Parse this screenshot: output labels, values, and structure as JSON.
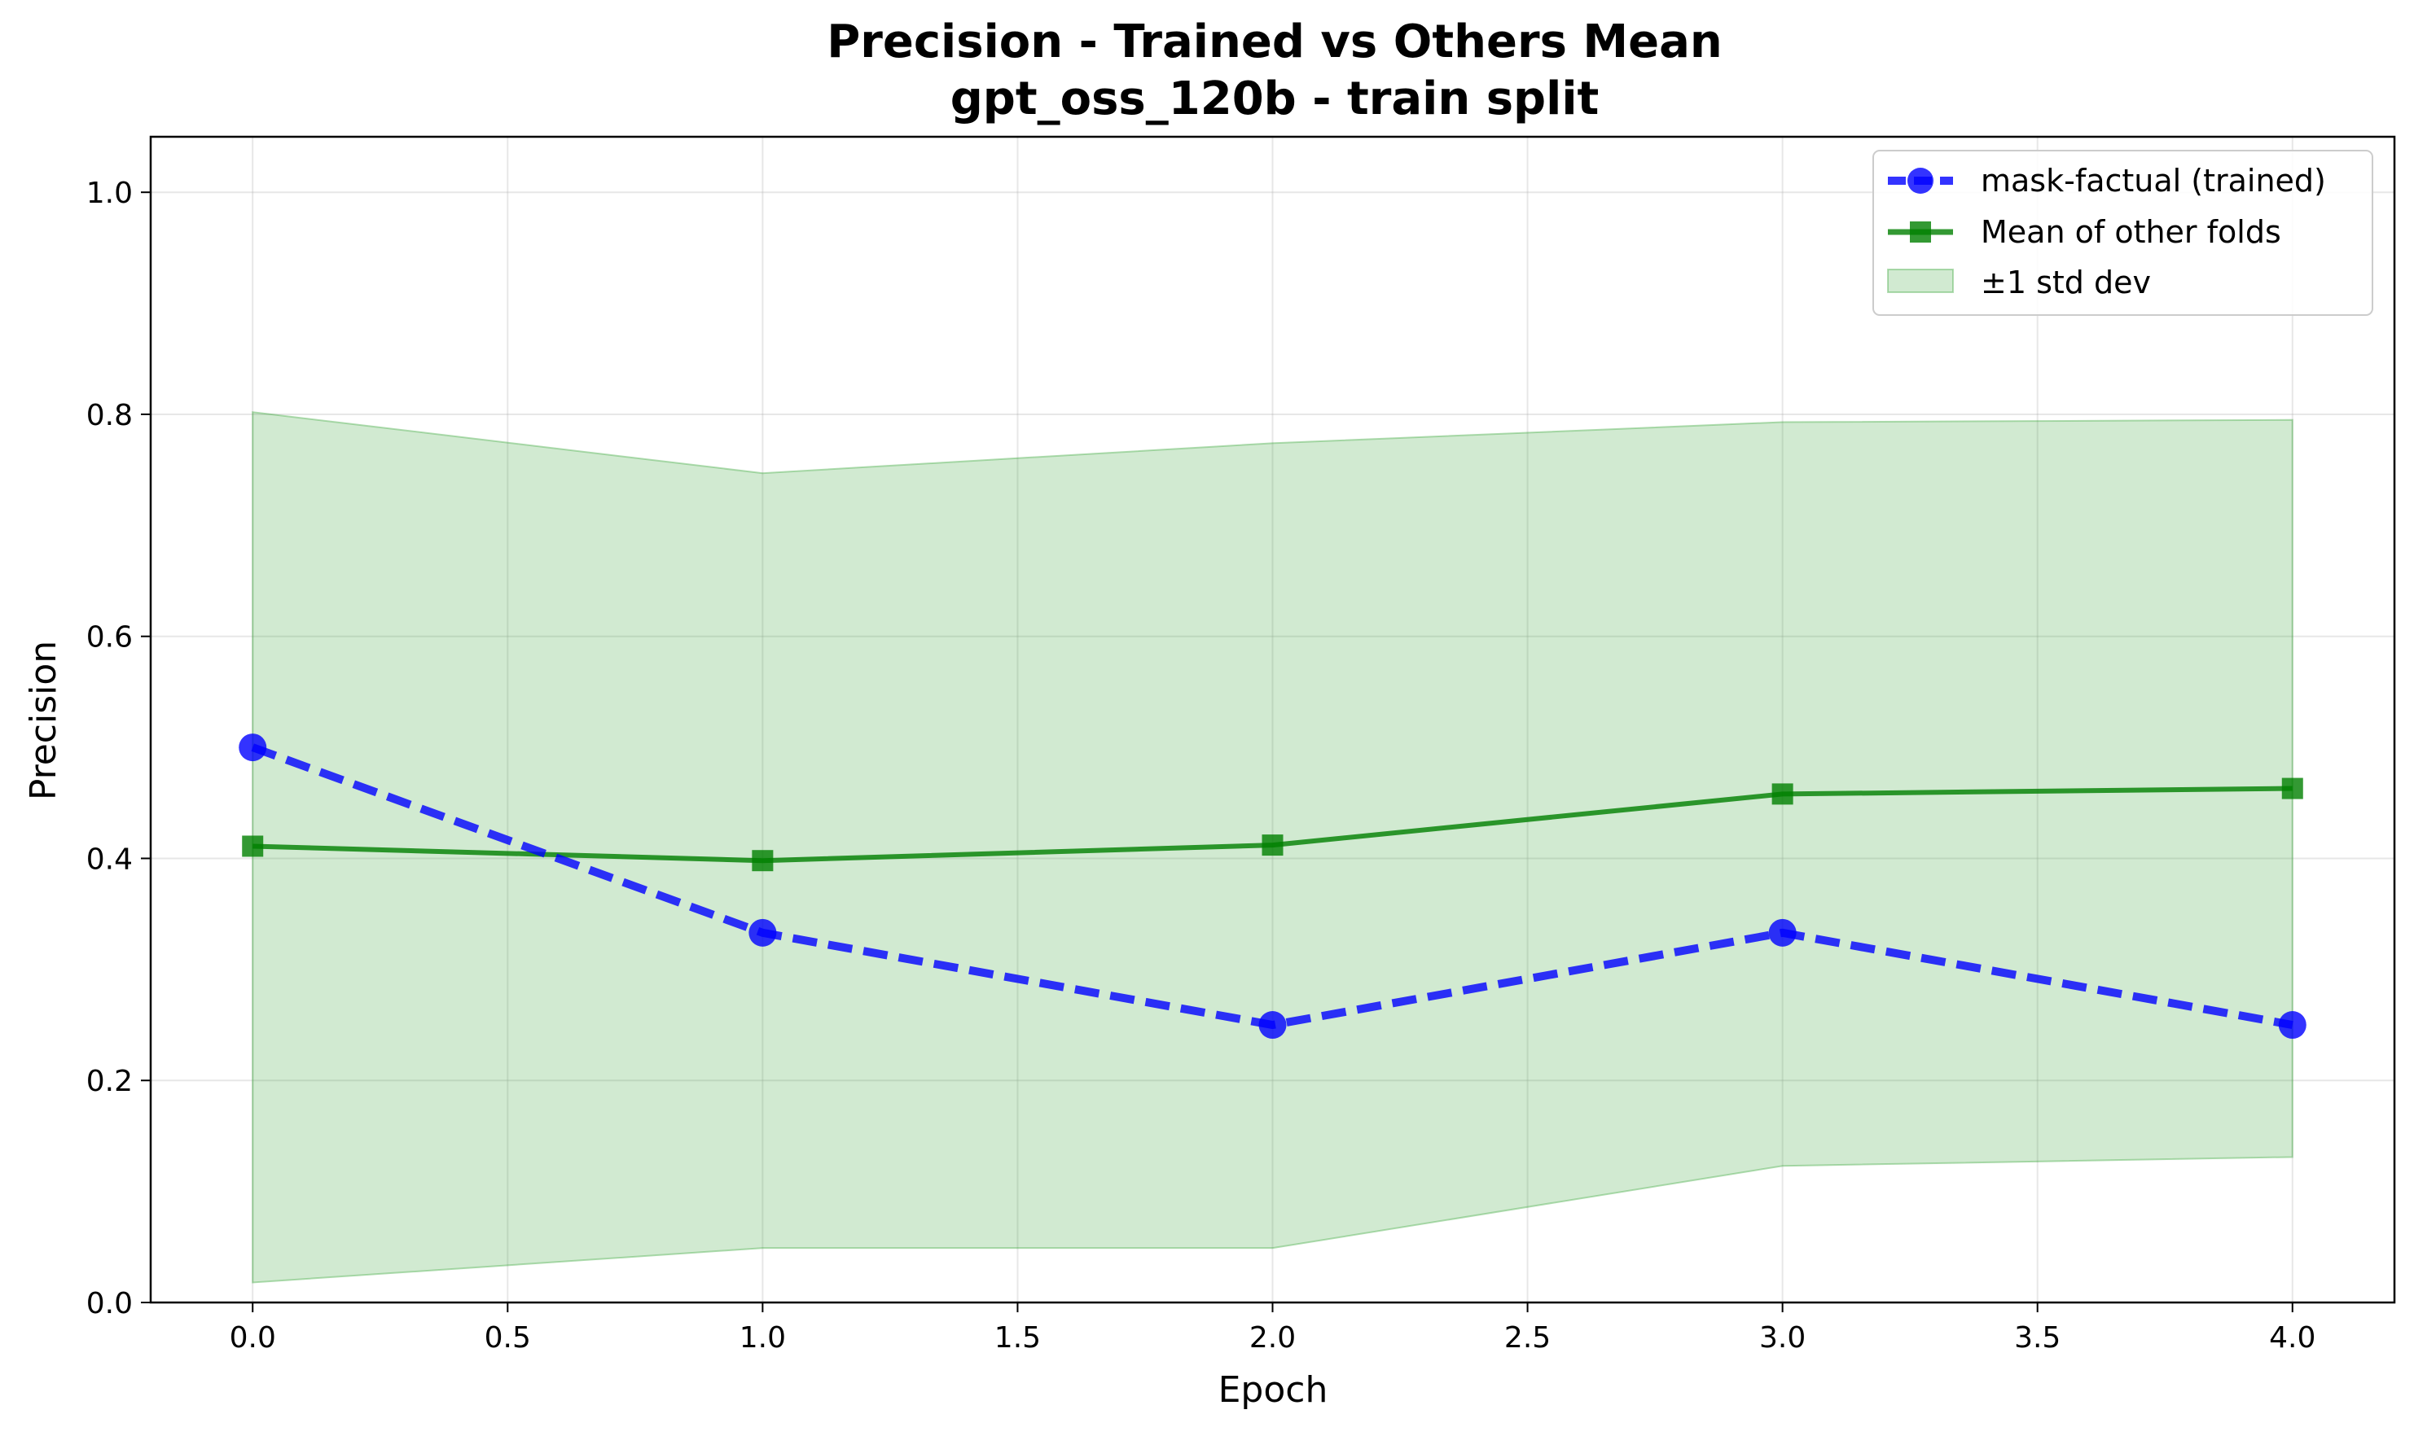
{
  "chart_data": {
    "type": "line",
    "title": "Precision - Trained vs Others Mean",
    "subtitle": "gpt_oss_120b - train split",
    "xlabel": "Epoch",
    "ylabel": "Precision",
    "xlim": [
      -0.2,
      4.2
    ],
    "ylim": [
      0.0,
      1.05
    ],
    "xticks": [
      0.0,
      0.5,
      1.0,
      1.5,
      2.0,
      2.5,
      3.0,
      3.5,
      4.0
    ],
    "xtick_labels": [
      "0.0",
      "0.5",
      "1.0",
      "1.5",
      "2.0",
      "2.5",
      "3.0",
      "3.5",
      "4.0"
    ],
    "yticks": [
      0.0,
      0.2,
      0.4,
      0.6,
      0.8,
      1.0
    ],
    "ytick_labels": [
      "0.0",
      "0.2",
      "0.4",
      "0.6",
      "0.8",
      "1.0"
    ],
    "grid": true,
    "legend_position": "top-right",
    "x": [
      0,
      1,
      2,
      3,
      4
    ],
    "series": [
      {
        "name": "mask-factual (trained)",
        "values": [
          0.5,
          0.333,
          0.25,
          0.333,
          0.25
        ],
        "color": "#0000ff",
        "style": "dashed",
        "marker": "circle"
      },
      {
        "name": "Mean of other folds",
        "values": [
          0.411,
          0.398,
          0.412,
          0.458,
          0.463
        ],
        "color": "#008000",
        "style": "solid",
        "marker": "square"
      }
    ],
    "band": {
      "name": "±1 std dev",
      "color": "#2ca02c",
      "upper": [
        0.802,
        0.747,
        0.774,
        0.793,
        0.795
      ],
      "lower": [
        0.018,
        0.049,
        0.049,
        0.123,
        0.131
      ]
    }
  }
}
